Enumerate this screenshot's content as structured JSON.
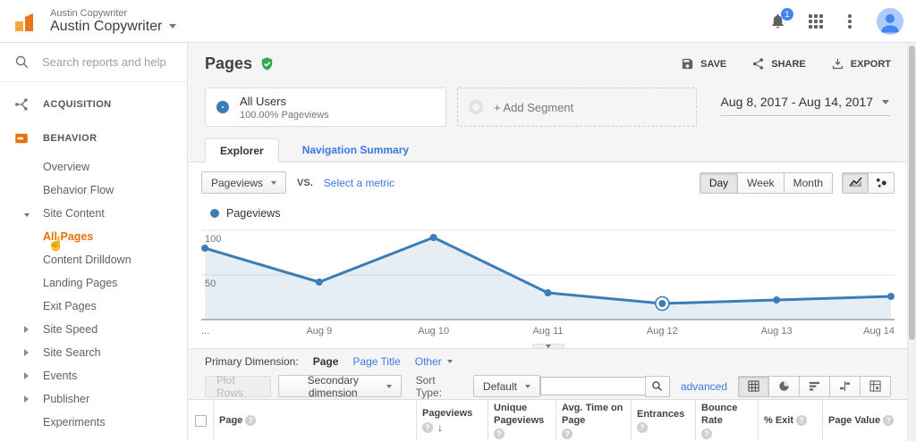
{
  "topbar": {
    "account_label": "Austin Copywriter",
    "account_name": "Austin Copywriter",
    "notification_count": "1",
    "icons": [
      "analytics-logo-icon",
      "bell-icon",
      "apps-grid-icon",
      "kebab-menu-icon",
      "avatar"
    ]
  },
  "sidebar": {
    "search_placeholder": "Search reports and help",
    "nav": [
      {
        "type": "section",
        "label": "ACQUISITION",
        "icon": "acquisition-icon"
      },
      {
        "type": "section",
        "label": "BEHAVIOR",
        "icon": "behavior-icon"
      },
      {
        "type": "item",
        "label": "Overview"
      },
      {
        "type": "item",
        "label": "Behavior Flow"
      },
      {
        "type": "item",
        "label": "Site Content",
        "arrow": "down"
      },
      {
        "type": "subitem",
        "label": "All Pages",
        "selected": true
      },
      {
        "type": "subitem",
        "label": "Content Drilldown"
      },
      {
        "type": "subitem",
        "label": "Landing Pages"
      },
      {
        "type": "subitem",
        "label": "Exit Pages"
      },
      {
        "type": "item",
        "label": "Site Speed",
        "arrow": "right"
      },
      {
        "type": "item",
        "label": "Site Search",
        "arrow": "right"
      },
      {
        "type": "item",
        "label": "Events",
        "arrow": "right"
      },
      {
        "type": "item",
        "label": "Publisher",
        "arrow": "right"
      },
      {
        "type": "item",
        "label": "Experiments"
      }
    ]
  },
  "report": {
    "title": "Pages",
    "status_icon": "shield-check-icon",
    "actions": [
      {
        "label": "SAVE",
        "icon": "save-icon"
      },
      {
        "label": "SHARE",
        "icon": "share-icon"
      },
      {
        "label": "EXPORT",
        "icon": "export-icon"
      }
    ]
  },
  "segments": {
    "all_users": {
      "title": "All Users",
      "subtitle": "100.00% Pageviews"
    },
    "add_label": "+ Add Segment"
  },
  "date_range": "Aug 8, 2017 - Aug 14, 2017",
  "tabs": [
    {
      "label": "Explorer",
      "active": true
    },
    {
      "label": "Navigation Summary",
      "active": false
    }
  ],
  "metric_controls": {
    "metric_button": "Pageviews",
    "vs_label": "VS.",
    "select_metric": "Select a metric",
    "granularity": [
      {
        "label": "Day",
        "active": true
      },
      {
        "label": "Week",
        "active": false
      },
      {
        "label": "Month",
        "active": false
      }
    ],
    "chart_type_icons": [
      {
        "icon": "line-chart-icon",
        "active": true
      },
      {
        "icon": "scatter-chart-icon",
        "active": false
      }
    ]
  },
  "legend": {
    "series": "Pageviews"
  },
  "chart_data": {
    "type": "line",
    "title": "Pageviews over time",
    "x": [
      "Aug 8",
      "Aug 9",
      "Aug 10",
      "Aug 11",
      "Aug 12",
      "Aug 13",
      "Aug 14"
    ],
    "x_tick_labels": [
      "...",
      "Aug 9",
      "Aug 10",
      "Aug 11",
      "Aug 12",
      "Aug 13",
      "Aug 14"
    ],
    "series": [
      {
        "name": "Pageviews",
        "values": [
          80,
          42,
          92,
          30,
          18,
          22,
          26
        ]
      }
    ],
    "ylim": [
      0,
      100
    ],
    "yticks": [
      50,
      100
    ],
    "grid": true,
    "highlight_index": 4,
    "line_color": "#3d7db5",
    "fill_color": "rgba(61,125,181,0.13)"
  },
  "dimension_row": {
    "label": "Primary Dimension:",
    "options": [
      {
        "label": "Page",
        "active": true
      },
      {
        "label": "Page Title",
        "active": false
      },
      {
        "label": "Other",
        "active": false,
        "caret": true
      }
    ]
  },
  "toolbar": {
    "plot_rows": "Plot Rows",
    "secondary_dimension": "Secondary dimension",
    "sort_type_label": "Sort Type:",
    "sort_type_value": "Default",
    "search_value": "",
    "advanced_label": "advanced",
    "view_buttons": [
      {
        "icon": "table-view-icon",
        "active": true
      },
      {
        "icon": "percentage-view-icon",
        "active": false
      },
      {
        "icon": "performance-view-icon",
        "active": false
      },
      {
        "icon": "comparison-view-icon",
        "active": false
      },
      {
        "icon": "pivot-view-icon",
        "active": false
      }
    ]
  },
  "table": {
    "columns": [
      {
        "label": "Page",
        "help": true
      },
      {
        "label": "Pageviews",
        "help": true,
        "sort": "desc"
      },
      {
        "label": "Unique Pageviews",
        "help": true
      },
      {
        "label": "Avg. Time on Page",
        "help": true
      },
      {
        "label": "Entrances",
        "help": true
      },
      {
        "label": "Bounce Rate",
        "help": true
      },
      {
        "label": "% Exit",
        "help": true
      },
      {
        "label": "Page Value",
        "help": true
      }
    ]
  },
  "colors": {
    "brand_orange": "#e8710a",
    "link_blue": "#3b78e7",
    "chart_blue": "#3d7db5",
    "status_green": "#34a853"
  }
}
